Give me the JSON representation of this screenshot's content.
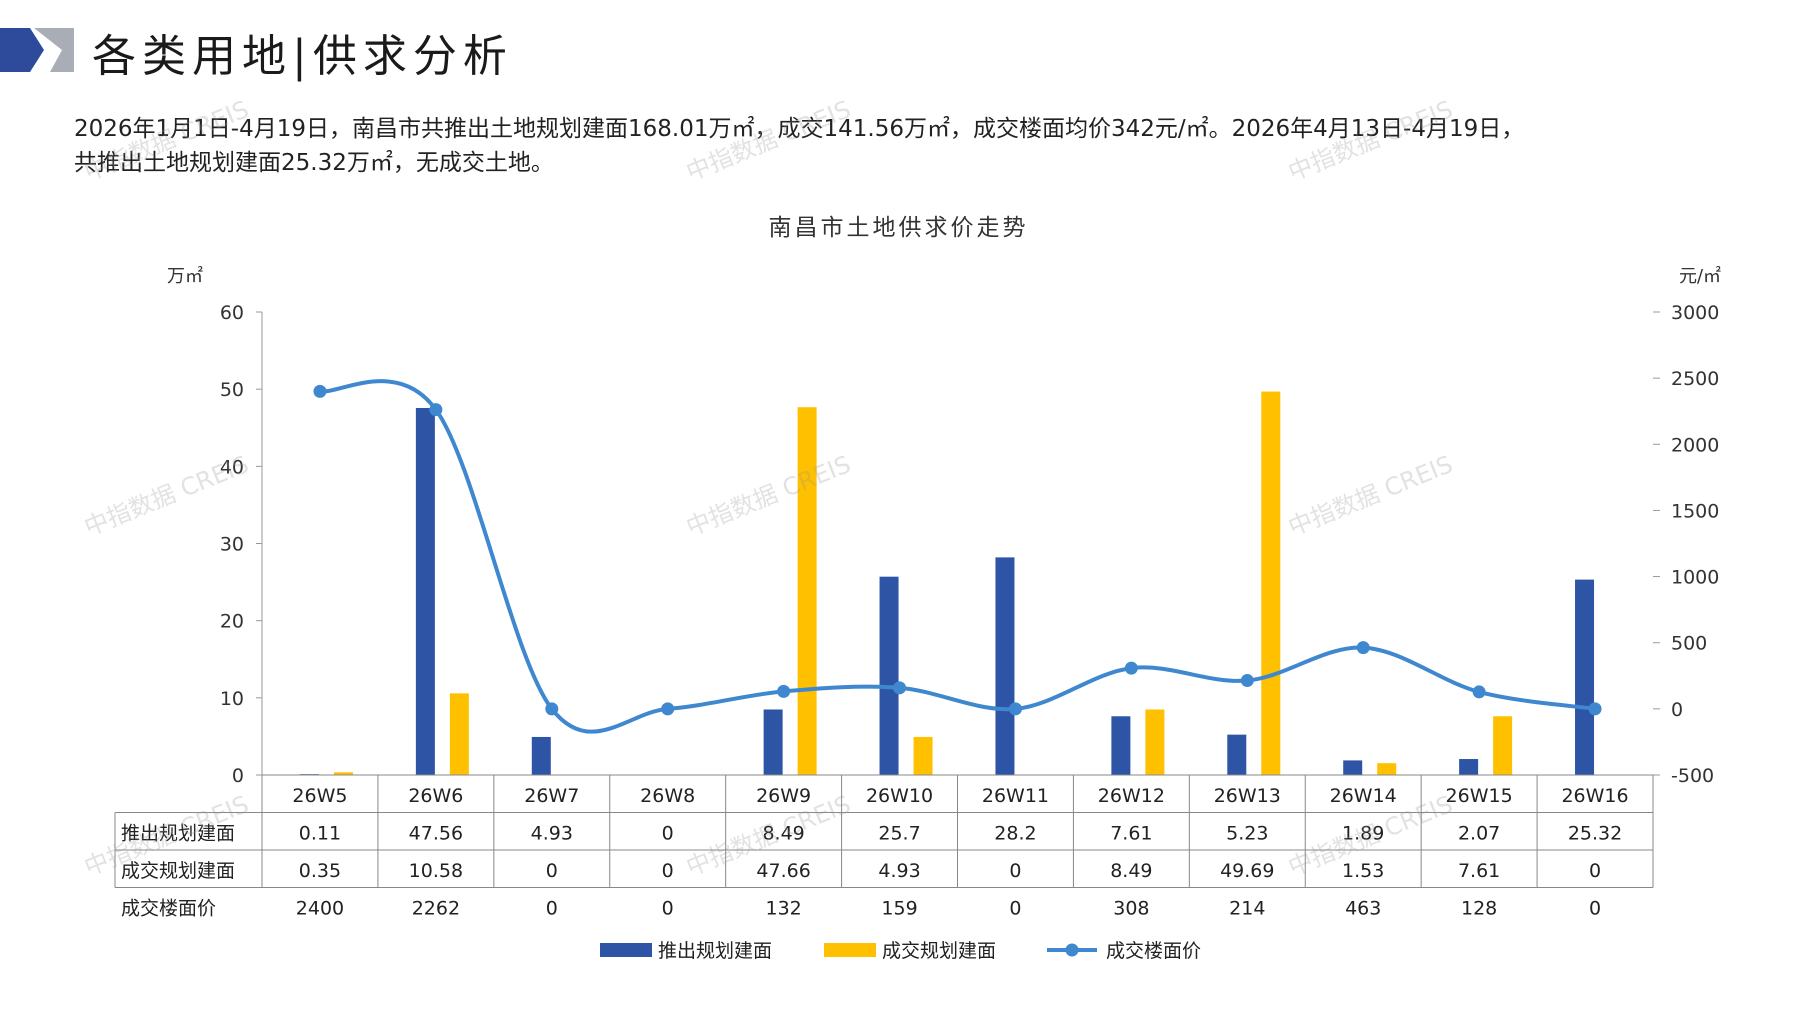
{
  "page": {
    "title": "各类用地|供求分析",
    "summary_line1": "2026年1月1日-4月19日，南昌市共推出土地规划建面168.01万㎡，成交141.56万㎡，成交楼面均价342元/㎡。2026年4月13日-4月19日，",
    "summary_line2": "共推出土地规划建面25.32万㎡，无成交土地。",
    "watermark": "中指数据 CREIS"
  },
  "colors": {
    "supply": "#2E54A5",
    "deal": "#FFC000",
    "price": "#3F88CF",
    "logo_dark": "#2E4A9B",
    "logo_grey": "#A9ADB6"
  },
  "chart_data": {
    "type": "bar",
    "title": "南昌市土地供求价走势",
    "y_left_unit": "万㎡",
    "y_right_unit": "元/㎡",
    "y_left_lim": [
      0,
      60
    ],
    "y_left_ticks": [
      "0",
      "10",
      "20",
      "30",
      "40",
      "50",
      "60"
    ],
    "y_right_lim": [
      -500,
      3000
    ],
    "y_right_ticks": [
      "-500",
      "0",
      "500",
      "1000",
      "1500",
      "2000",
      "2500",
      "3000"
    ],
    "categories": [
      "26W5",
      "26W6",
      "26W7",
      "26W8",
      "26W9",
      "26W10",
      "26W11",
      "26W12",
      "26W13",
      "26W14",
      "26W15",
      "26W16"
    ],
    "series": [
      {
        "name": "推出规划建面",
        "type": "bar",
        "axis": "left",
        "values": [
          0.11,
          47.56,
          4.93,
          0,
          8.49,
          25.7,
          28.2,
          7.61,
          5.23,
          1.89,
          2.07,
          25.32
        ],
        "labels": [
          "0.11",
          "47.56",
          "4.93",
          "0",
          "8.49",
          "25.7",
          "28.2",
          "7.61",
          "5.23",
          "1.89",
          "2.07",
          "25.32"
        ]
      },
      {
        "name": "成交规划建面",
        "type": "bar",
        "axis": "left",
        "values": [
          0.35,
          10.58,
          0,
          0,
          47.66,
          4.93,
          0,
          8.49,
          49.69,
          1.53,
          7.61,
          0
        ],
        "labels": [
          "0.35",
          "10.58",
          "0",
          "0",
          "47.66",
          "4.93",
          "0",
          "8.49",
          "49.69",
          "1.53",
          "7.61",
          "0"
        ]
      },
      {
        "name": "成交楼面价",
        "type": "line",
        "axis": "right",
        "values": [
          2400,
          2262,
          0,
          0,
          132,
          159,
          0,
          308,
          214,
          463,
          128,
          0
        ],
        "labels": [
          "2400",
          "2262",
          "0",
          "0",
          "132",
          "159",
          "0",
          "308",
          "214",
          "463",
          "128",
          "0"
        ]
      }
    ],
    "legend_position": "bottom"
  }
}
